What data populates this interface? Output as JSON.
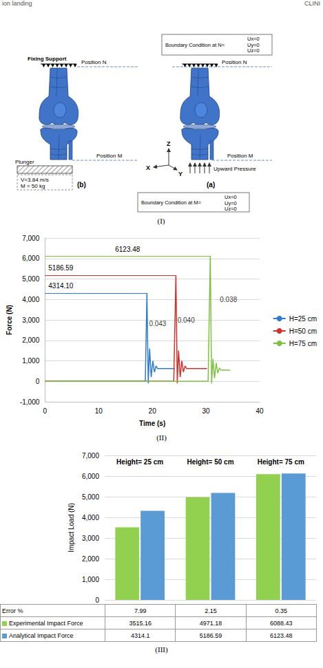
{
  "header": {
    "left": "ion landing",
    "right": "CLINI"
  },
  "diagram": {
    "panel_label": "(I)",
    "fixing_support": "Fixing Support",
    "position_n": "Position N",
    "position_m": "Position M",
    "model_b": "(b)",
    "model_a": "(a)",
    "plunger": {
      "label": "Plunger",
      "velocity": "V=3.84 m/s",
      "mass": "M = 50 kg"
    },
    "load": "Upward Pressure",
    "boundary_n": {
      "title": "Boundary Condition at N=",
      "conditions": [
        "Ux=0",
        "Uy=0",
        "Uz=0"
      ]
    },
    "boundary_m": {
      "title": "Boundary Condition at M=",
      "conditions": [
        "Ux=0",
        "Uy=0",
        "Uz=0"
      ]
    },
    "axes": {
      "z": "Z",
      "x": "X",
      "y": "Y"
    }
  },
  "chart_data": [
    {
      "type": "line",
      "panel_label": "(II)",
      "x_label": "Time (s)",
      "y_label": "Force (N)",
      "series": [
        {
          "name": "H=25 cm",
          "color": "#2e7bcf",
          "x": [
            0,
            18.7,
            19.0,
            19.25,
            19.5,
            19.8,
            20.1,
            20.4,
            20.7,
            21.0,
            24.2
          ],
          "values": [
            0,
            0,
            4314.1,
            -100,
            1600,
            200,
            1000,
            450,
            750,
            620,
            620
          ],
          "peak_label": "4314.10",
          "width_label": "0.043",
          "width_label_at": [
            21.0,
            2800
          ]
        },
        {
          "name": "H=50 cm",
          "color": "#d0312d",
          "x": [
            0,
            24.0,
            24.4,
            24.65,
            24.9,
            25.2,
            25.5,
            25.8,
            26.1,
            26.4,
            30.2
          ],
          "values": [
            0,
            0,
            5186.59,
            -100,
            1500,
            200,
            1000,
            450,
            750,
            620,
            620
          ],
          "peak_label": "5186.59",
          "width_label": "0.040",
          "width_label_at": [
            26.3,
            3000
          ]
        },
        {
          "name": "H=75 cm",
          "color": "#7cc242",
          "x": [
            0,
            30.4,
            30.8,
            31.05,
            31.3,
            31.6,
            31.9,
            32.2,
            32.5,
            32.8,
            34.5
          ],
          "values": [
            0,
            0,
            6123.48,
            -100,
            1100,
            150,
            900,
            400,
            650,
            550,
            550
          ],
          "peak_label": "6123.48",
          "width_label": "0.038",
          "width_label_at": [
            34.2,
            4000
          ]
        }
      ],
      "xlim": [
        0,
        40
      ],
      "xticks": [
        0,
        10,
        20,
        30,
        40
      ],
      "ylim": [
        -1000,
        7000
      ],
      "yticks": [
        -1000,
        0,
        1000,
        2000,
        3000,
        4000,
        5000,
        6000,
        7000
      ],
      "grid": true,
      "legend": "right"
    },
    {
      "type": "bar",
      "panel_label": "(III)",
      "y_label": "Impact Load (N)",
      "categories": [
        "Height= 25 cm",
        "Height= 50 cm",
        "Height= 75 cm"
      ],
      "series": [
        {
          "name": "Experimental Impact Force",
          "color": "#92d050",
          "values": [
            3515.16,
            4971.18,
            6088.43
          ]
        },
        {
          "name": "Analytical Impact Force",
          "color": "#5b9bd5",
          "values": [
            4314.1,
            5186.59,
            6123.48
          ]
        }
      ],
      "error_label": "Error %",
      "error_percent": [
        7.99,
        2.15,
        0.35
      ],
      "ylim": [
        0,
        7000
      ],
      "yticks": [
        0,
        1000,
        2000,
        3000,
        4000,
        5000,
        6000,
        7000
      ],
      "grid": true
    }
  ]
}
